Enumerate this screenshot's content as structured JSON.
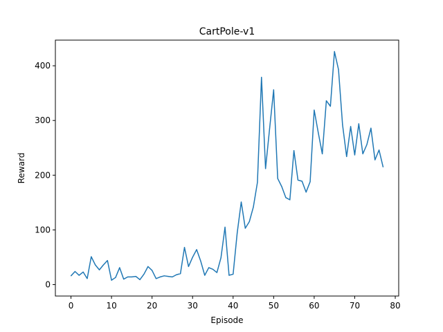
{
  "chart_data": {
    "type": "line",
    "title": "CartPole-v1",
    "xlabel": "Episode",
    "ylabel": "Reward",
    "xlim": [
      -3.85,
      80.85
    ],
    "ylim": [
      -20.9,
      446.9
    ],
    "xticks": [
      0,
      10,
      20,
      30,
      40,
      50,
      60,
      70,
      80
    ],
    "yticks": [
      0,
      100,
      200,
      300,
      400
    ],
    "grid": false,
    "legend": "none",
    "series": [
      {
        "color": "#1f77b4",
        "x": [
          0,
          1,
          2,
          3,
          4,
          5,
          6,
          7,
          8,
          9,
          10,
          11,
          12,
          13,
          14,
          15,
          16,
          17,
          18,
          19,
          20,
          21,
          22,
          23,
          24,
          25,
          26,
          27,
          28,
          29,
          30,
          31,
          32,
          33,
          34,
          35,
          36,
          37,
          38,
          39,
          40,
          41,
          42,
          43,
          44,
          45,
          46,
          47,
          48,
          49,
          50,
          51,
          52,
          53,
          54,
          55,
          56,
          57,
          58,
          59,
          60,
          61,
          62,
          63,
          64,
          65,
          66,
          67,
          68,
          69,
          70,
          71,
          72,
          73,
          74,
          75,
          76,
          77
        ],
        "values": [
          16,
          24,
          17,
          23,
          11,
          51,
          36,
          27,
          36,
          44,
          8,
          13,
          31,
          10,
          14,
          14,
          15,
          9,
          19,
          33,
          26,
          11,
          14,
          16,
          15,
          14,
          18,
          20,
          68,
          33,
          50,
          64,
          43,
          17,
          31,
          28,
          22,
          49,
          105,
          17,
          19,
          94,
          151,
          103,
          115,
          142,
          187,
          379,
          212,
          285,
          356,
          194,
          179,
          159,
          155,
          245,
          191,
          189,
          169,
          188,
          319,
          278,
          239,
          336,
          326,
          426,
          393,
          292,
          234,
          289,
          237,
          294,
          239,
          256,
          286,
          228,
          246,
          215
        ]
      }
    ]
  }
}
